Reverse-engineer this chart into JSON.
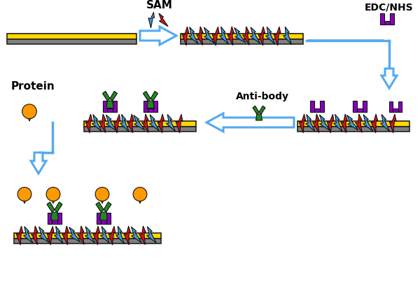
{
  "bg_color": "#ffffff",
  "gold_color": "#FFD700",
  "dark_color": "#808080",
  "blue_color": "#4499DD",
  "red_color": "#DD1111",
  "green_color": "#228822",
  "purple_color": "#8800BB",
  "orange_color": "#FF9900",
  "arrow_color": "#55AAEE",
  "label_SAM": "SAM",
  "label_EDC": "EDC/NHS",
  "label_Protein": "Protein",
  "label_Antibody": "Anti-body",
  "label_fontsize": 10,
  "fig_w": 6.0,
  "fig_h": 4.03,
  "dpi": 100
}
